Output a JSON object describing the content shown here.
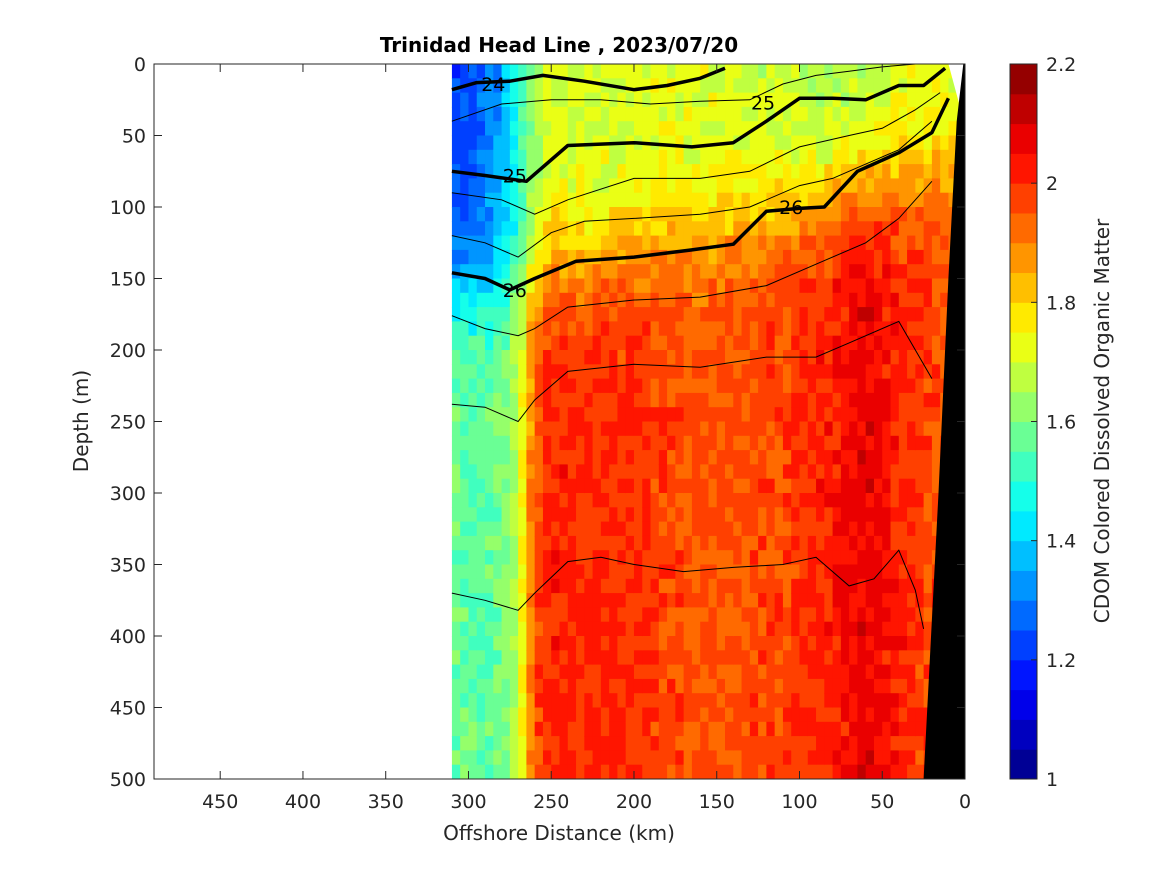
{
  "chart_data": {
    "type": "heatmap",
    "title": "Trinidad Head Line , 2023/07/20",
    "xlabel": "Offshore Distance (km)",
    "ylabel": "Depth (m)",
    "colorbar_label": "CDOM Colored Dissolved Organic Matter",
    "xlim": [
      490,
      0
    ],
    "ylim": [
      0,
      500
    ],
    "x_reversed": true,
    "y_reversed": true,
    "x_ticks": [
      450,
      400,
      350,
      300,
      250,
      200,
      150,
      100,
      50,
      0
    ],
    "y_ticks": [
      0,
      50,
      100,
      150,
      200,
      250,
      300,
      350,
      400,
      450,
      500
    ],
    "colorbar": {
      "range": [
        1,
        2.2
      ],
      "ticks": [
        "2.2",
        "2",
        "1.8",
        "1.6",
        "1.4",
        "1.2",
        "1"
      ],
      "tick_values": [
        2.2,
        2.0,
        1.8,
        1.6,
        1.4,
        1.2,
        1.0
      ],
      "colormap": "jet",
      "levels": 24
    },
    "data_extent_km": [
      310,
      0
    ],
    "cdom_profile": {
      "x_km": [
        310,
        300,
        290,
        280,
        270,
        260,
        250,
        230,
        200,
        170,
        140,
        110,
        80,
        60,
        40,
        25,
        10
      ],
      "surface": [
        1.22,
        1.24,
        1.28,
        1.35,
        1.48,
        1.62,
        1.72,
        1.7,
        1.7,
        1.72,
        1.7,
        1.68,
        1.66,
        1.66,
        1.7,
        1.72,
        1.72
      ],
      "deep": [
        1.58,
        1.56,
        1.56,
        1.58,
        1.68,
        1.95,
        2.02,
        2.0,
        2.0,
        1.96,
        1.95,
        1.98,
        2.02,
        2.08,
        2.02,
        1.98,
        1.95
      ]
    },
    "contours_bold": [
      {
        "label": "24",
        "x_km": [
          310,
          295,
          275,
          255,
          230,
          200,
          180,
          160,
          145
        ],
        "depth_m": [
          18,
          13,
          12,
          8,
          12,
          18,
          15,
          10,
          3
        ]
      },
      {
        "label": "25",
        "x_km": [
          310,
          290,
          265,
          240,
          200,
          165,
          140,
          120,
          100,
          80,
          60,
          40,
          25,
          12
        ],
        "depth_m": [
          75,
          78,
          82,
          57,
          55,
          58,
          55,
          40,
          24,
          24,
          25,
          15,
          15,
          3
        ]
      },
      {
        "label": "26",
        "x_km": [
          310,
          290,
          275,
          260,
          235,
          200,
          165,
          140,
          120,
          100,
          85,
          65,
          40,
          20,
          10
        ],
        "depth_m": [
          146,
          150,
          158,
          150,
          138,
          135,
          130,
          126,
          103,
          101,
          100,
          75,
          62,
          48,
          24
        ]
      }
    ],
    "contours_thin": [
      {
        "x_km": [
          310,
          280,
          250,
          220,
          190,
          160,
          130,
          110,
          90,
          70,
          50,
          30,
          15
        ],
        "depth_m": [
          40,
          28,
          25,
          25,
          28,
          26,
          25,
          14,
          8,
          5,
          2,
          0,
          0
        ]
      },
      {
        "x_km": [
          310,
          280,
          260,
          240,
          200,
          160,
          130,
          100,
          70,
          50,
          30,
          15
        ],
        "depth_m": [
          90,
          95,
          105,
          95,
          80,
          80,
          75,
          58,
          50,
          45,
          32,
          20
        ]
      },
      {
        "x_km": [
          310,
          290,
          270,
          250,
          230,
          200,
          160,
          130,
          100,
          80,
          60,
          40,
          20
        ],
        "depth_m": [
          120,
          125,
          135,
          118,
          110,
          108,
          105,
          100,
          85,
          80,
          70,
          60,
          40
        ]
      },
      {
        "x_km": [
          310,
          290,
          270,
          260,
          240,
          200,
          160,
          120,
          90,
          60,
          40,
          20
        ],
        "depth_m": [
          176,
          185,
          190,
          185,
          170,
          165,
          163,
          155,
          140,
          125,
          108,
          82
        ]
      },
      {
        "x_km": [
          310,
          290,
          270,
          260,
          240,
          200,
          160,
          120,
          90,
          70,
          40,
          20
        ],
        "depth_m": [
          238,
          240,
          250,
          235,
          215,
          210,
          212,
          205,
          205,
          195,
          180,
          220
        ]
      },
      {
        "x_km": [
          310,
          290,
          270,
          260,
          240,
          220,
          200,
          170,
          140,
          110,
          90,
          70,
          55,
          40,
          30,
          25
        ],
        "depth_m": [
          370,
          375,
          382,
          370,
          348,
          345,
          350,
          355,
          352,
          350,
          345,
          365,
          360,
          340,
          368,
          395
        ]
      }
    ]
  }
}
